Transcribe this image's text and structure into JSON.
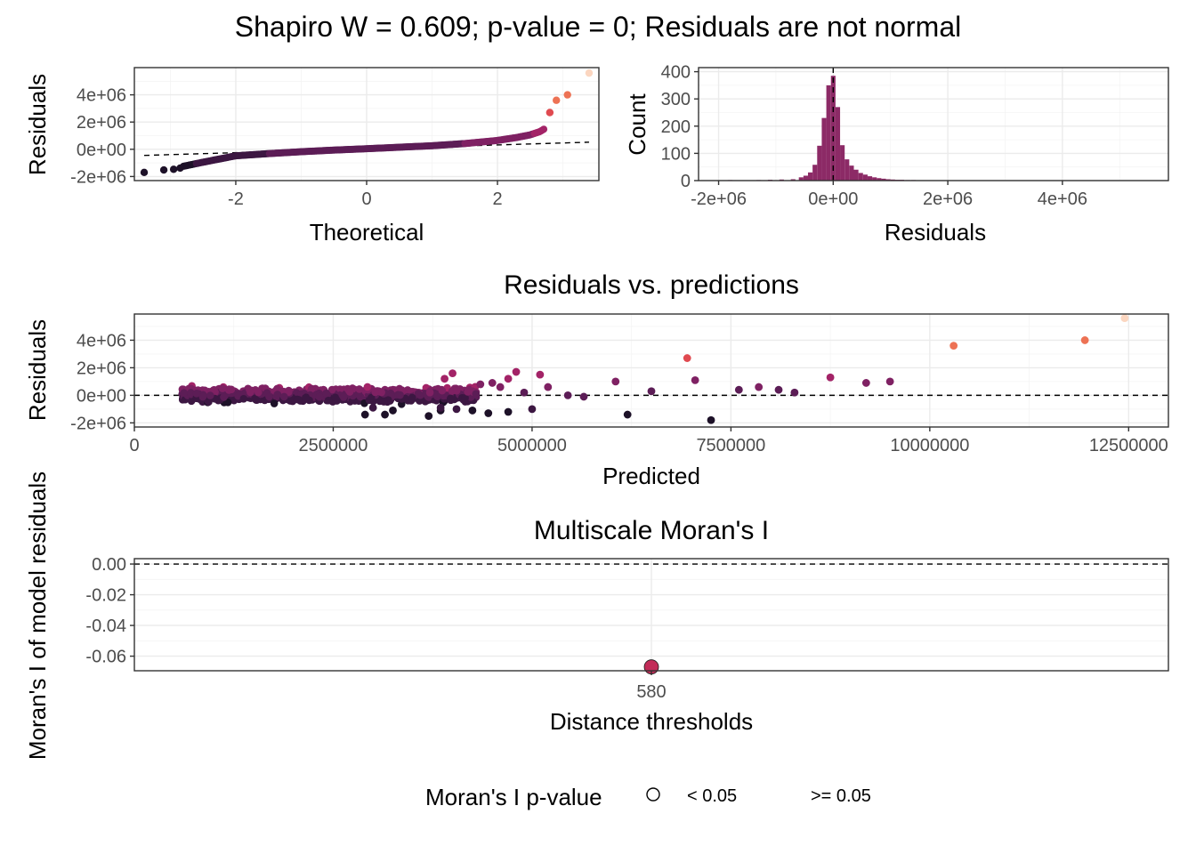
{
  "main_title": "Shapiro W = 0.609; p-value = 0; Residuals are not normal",
  "colors": {
    "palette": [
      "#1d1128",
      "#3c1742",
      "#5c1d56",
      "#7f2163",
      "#a32367",
      "#c72a5f",
      "#e04a50",
      "#ed7254",
      "#f4a27e",
      "#fbd6c0"
    ],
    "histogram_fill": "#8c2a66",
    "moran_point": "#c22c58"
  },
  "chart_data": [
    {
      "id": "qq",
      "type": "scatter",
      "title": "",
      "xlabel": "Theoretical",
      "ylabel": "Residuals",
      "xlim": [
        -3.55,
        3.55
      ],
      "ylim": [
        -2300000,
        6000000
      ],
      "x_ticks": [
        "-2",
        "0",
        "2"
      ],
      "x_tick_values": [
        -2,
        0,
        2
      ],
      "y_ticks": [
        "-2e+06",
        "0e+00",
        "2e+06",
        "4e+06"
      ],
      "y_tick_values": [
        -2000000,
        0,
        2000000,
        4000000
      ],
      "reference_line": [
        [
          -3.4,
          -450000
        ],
        [
          3.4,
          520000
        ]
      ],
      "curve_knots": [
        [
          -3.4,
          -1700000
        ],
        [
          -3.0,
          -1450000
        ],
        [
          -2.5,
          -950000
        ],
        [
          -2.0,
          -480000
        ],
        [
          -1.5,
          -320000
        ],
        [
          -1.0,
          -180000
        ],
        [
          -0.5,
          -60000
        ],
        [
          0.0,
          40000
        ],
        [
          0.5,
          150000
        ],
        [
          1.0,
          260000
        ],
        [
          1.5,
          420000
        ],
        [
          2.0,
          650000
        ],
        [
          2.3,
          870000
        ],
        [
          2.5,
          1060000
        ],
        [
          2.65,
          1300000
        ],
        [
          2.75,
          1600000
        ]
      ],
      "extreme_points": [
        [
          -3.4,
          -1700000
        ],
        [
          -3.1,
          -1520000
        ],
        [
          -2.95,
          -1470000
        ],
        [
          -2.85,
          -1380000
        ],
        [
          2.8,
          2700000
        ],
        [
          2.9,
          3600000
        ],
        [
          3.07,
          4000000
        ],
        [
          3.4,
          5600000
        ]
      ]
    },
    {
      "id": "histogram",
      "type": "bar",
      "title": "",
      "xlabel": "Residuals",
      "ylabel": "Count",
      "xlim": [
        -2350000,
        5850000
      ],
      "ylim": [
        0,
        415
      ],
      "x_ticks": [
        "-2e+06",
        "0e+00",
        "2e+06",
        "4e+06"
      ],
      "x_tick_values": [
        -2000000,
        0,
        2000000,
        4000000
      ],
      "y_ticks": [
        "0",
        "100",
        "200",
        "300",
        "400"
      ],
      "y_tick_values": [
        0,
        100,
        200,
        300,
        400
      ],
      "bin_width": 80000,
      "bins": [
        {
          "x": -1800000,
          "count": 2
        },
        {
          "x": -1650000,
          "count": 1
        },
        {
          "x": -1450000,
          "count": 1
        },
        {
          "x": -1300000,
          "count": 2
        },
        {
          "x": -1100000,
          "count": 3
        },
        {
          "x": -900000,
          "count": 4
        },
        {
          "x": -700000,
          "count": 5
        },
        {
          "x": -560000,
          "count": 12
        },
        {
          "x": -480000,
          "count": 18
        },
        {
          "x": -400000,
          "count": 30
        },
        {
          "x": -320000,
          "count": 58
        },
        {
          "x": -240000,
          "count": 128
        },
        {
          "x": -160000,
          "count": 230
        },
        {
          "x": -80000,
          "count": 350
        },
        {
          "x": 0,
          "count": 385
        },
        {
          "x": 80000,
          "count": 270
        },
        {
          "x": 160000,
          "count": 130
        },
        {
          "x": 240000,
          "count": 78
        },
        {
          "x": 320000,
          "count": 55
        },
        {
          "x": 400000,
          "count": 40
        },
        {
          "x": 480000,
          "count": 28
        },
        {
          "x": 560000,
          "count": 22
        },
        {
          "x": 640000,
          "count": 16
        },
        {
          "x": 720000,
          "count": 12
        },
        {
          "x": 800000,
          "count": 9
        },
        {
          "x": 880000,
          "count": 7
        },
        {
          "x": 960000,
          "count": 5
        },
        {
          "x": 1040000,
          "count": 4
        },
        {
          "x": 1120000,
          "count": 3
        },
        {
          "x": 1200000,
          "count": 3
        },
        {
          "x": 1300000,
          "count": 2
        },
        {
          "x": 1400000,
          "count": 2
        },
        {
          "x": 1500000,
          "count": 1
        },
        {
          "x": 1600000,
          "count": 1
        },
        {
          "x": 1700000,
          "count": 1
        },
        {
          "x": 2700000,
          "count": 1
        },
        {
          "x": 3600000,
          "count": 1
        },
        {
          "x": 4000000,
          "count": 1
        },
        {
          "x": 5600000,
          "count": 1
        }
      ]
    },
    {
      "id": "residuals_vs_predictions",
      "type": "scatter",
      "title": "Residuals vs. predictions",
      "xlabel": "Predicted",
      "ylabel": "Residuals",
      "xlim": [
        0,
        13000000
      ],
      "ylim": [
        -2300000,
        5900000
      ],
      "x_ticks": [
        "0",
        "2500000",
        "5000000",
        "7500000",
        "10000000",
        "12500000"
      ],
      "x_tick_values": [
        0,
        2500000,
        5000000,
        7500000,
        10000000,
        12500000
      ],
      "y_ticks": [
        "-2e+06",
        "0e+00",
        "2e+06",
        "4e+06"
      ],
      "y_tick_values": [
        -2000000,
        0,
        2000000,
        4000000
      ],
      "dense_cloud": {
        "x_range": [
          600000,
          4300000
        ],
        "y_spread": [
          -650000,
          650000
        ]
      },
      "points": [
        [
          3900000,
          1200000
        ],
        [
          4000000,
          1600000
        ],
        [
          4350000,
          800000
        ],
        [
          4500000,
          900000
        ],
        [
          4800000,
          1700000
        ],
        [
          4700000,
          1200000
        ],
        [
          5100000,
          1500000
        ],
        [
          4600000,
          600000
        ],
        [
          5200000,
          600000
        ],
        [
          5450000,
          0
        ],
        [
          5650000,
          -100000
        ],
        [
          4900000,
          200000
        ],
        [
          3000000,
          -900000
        ],
        [
          2900000,
          -1400000
        ],
        [
          3150000,
          -1400000
        ],
        [
          3250000,
          -1100000
        ],
        [
          3700000,
          -1500000
        ],
        [
          3850000,
          -1100000
        ],
        [
          3850000,
          -900000
        ],
        [
          4050000,
          -1000000
        ],
        [
          4250000,
          -1100000
        ],
        [
          4450000,
          -1300000
        ],
        [
          4700000,
          -1200000
        ],
        [
          5000000,
          -1000000
        ],
        [
          6050000,
          1000000
        ],
        [
          6200000,
          -1400000
        ],
        [
          6500000,
          300000
        ],
        [
          6950000,
          2700000
        ],
        [
          7050000,
          1100000
        ],
        [
          7250000,
          -1800000
        ],
        [
          7600000,
          400000
        ],
        [
          7850000,
          600000
        ],
        [
          8100000,
          400000
        ],
        [
          8300000,
          200000
        ],
        [
          8750000,
          1300000
        ],
        [
          9200000,
          900000
        ],
        [
          9500000,
          1000000
        ],
        [
          10300000,
          3600000
        ],
        [
          11950000,
          4000000
        ],
        [
          12450000,
          5600000
        ]
      ]
    },
    {
      "id": "multiscale_moran",
      "type": "scatter",
      "title": "Multiscale Moran's I",
      "xlabel": "Distance thresholds",
      "ylabel": "Moran's I of model residuals",
      "ylim": [
        -0.0695,
        0.0035
      ],
      "x_ticks": [
        "580"
      ],
      "y_ticks": [
        "0.00",
        "-0.02",
        "-0.04",
        "-0.06"
      ],
      "y_tick_values": [
        0,
        -0.02,
        -0.04,
        -0.06
      ],
      "points": [
        {
          "x": "580",
          "y": -0.067,
          "p_value_class": "< 0.05"
        }
      ],
      "reference_line": 0
    }
  ],
  "legend": {
    "title": "Moran's I p-value",
    "items": [
      "< 0.05",
      ">= 0.05"
    ]
  }
}
